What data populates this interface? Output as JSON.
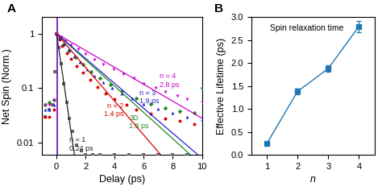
{
  "chart_data": [
    {
      "type": "scatter",
      "panel_label": "A",
      "xlabel": "Delay (ps)",
      "ylabel": "Net Spin (Norm.)",
      "log": "y",
      "xlim": [
        -1,
        10
      ],
      "ylim": [
        0.006,
        2.0
      ],
      "xticks": [
        0,
        2,
        4,
        6,
        8,
        10
      ],
      "yticks": [
        0.01,
        0.1,
        1
      ],
      "series": [
        {
          "color": "#666666",
          "marker": "square",
          "x": [
            -0.8,
            -0.5,
            -0.3,
            -0.1,
            0.0,
            0.15,
            0.3,
            0.5,
            0.7,
            0.9,
            1.1,
            1.4,
            1.7,
            2.0,
            2.5,
            3.0,
            4.0,
            5.0,
            6.0,
            7.0,
            8.0,
            9.0
          ],
          "values": [
            0.03,
            0.04,
            0.05,
            0.2,
            1.0,
            0.55,
            0.28,
            0.12,
            0.055,
            0.028,
            0.016,
            0.009,
            0.007,
            0.006,
            0.006,
            0.006,
            0.006,
            0.006,
            0.006,
            0.006,
            0.006,
            0.006
          ],
          "fit": {
            "tau": 0.24,
            "x_start": 0.0,
            "x_end": 10.0,
            "color": "#222222"
          }
        },
        {
          "color": "#228b22",
          "marker": "diamond",
          "x": [
            -0.8,
            -0.5,
            -0.2,
            0.0,
            0.2,
            0.5,
            0.9,
            1.3,
            1.8,
            2.4,
            3.0,
            3.7,
            4.5,
            5.5,
            6.5,
            7.5,
            8.5,
            9.5,
            10.0
          ],
          "values": [
            0.05,
            0.055,
            0.06,
            1.0,
            0.83,
            0.64,
            0.48,
            0.37,
            0.27,
            0.2,
            0.15,
            0.115,
            0.088,
            0.065,
            0.052,
            0.043,
            0.038,
            0.035,
            0.1
          ],
          "fit": {
            "tau": 1.8,
            "x_start": 0.0,
            "x_end": 10.0,
            "color": "#228b22"
          }
        },
        {
          "color": "#dd0000",
          "marker": "circle",
          "x": [
            -0.8,
            -0.5,
            -0.2,
            0.0,
            0.2,
            0.4,
            0.7,
            1.0,
            1.4,
            1.8,
            2.3,
            2.8,
            3.4,
            4.0,
            4.8,
            5.5,
            6.5,
            7.5,
            8.5,
            9.5
          ],
          "values": [
            0.03,
            0.03,
            0.04,
            1.0,
            0.78,
            0.6,
            0.44,
            0.34,
            0.25,
            0.19,
            0.14,
            0.105,
            0.08,
            0.063,
            0.05,
            0.04,
            0.034,
            0.028,
            0.025,
            0.022
          ],
          "fit": {
            "tau": 1.4,
            "x_start": 0.0,
            "x_end": 10.0,
            "color": "#dd0000"
          }
        },
        {
          "color": "#2222cc",
          "marker": "triangle_up",
          "x": [
            -0.8,
            -0.5,
            -0.2,
            0.0,
            0.2,
            0.5,
            0.8,
            1.2,
            1.6,
            2.1,
            2.6,
            3.2,
            3.8,
            4.5,
            5.2,
            6.0,
            7.0,
            8.0,
            9.0,
            10.0
          ],
          "values": [
            0.04,
            0.04,
            0.05,
            1.0,
            0.82,
            0.63,
            0.5,
            0.38,
            0.3,
            0.22,
            0.17,
            0.13,
            0.1,
            0.08,
            0.065,
            0.052,
            0.042,
            0.035,
            0.03,
            0.027
          ],
          "fit": {
            "tau": 1.9,
            "x_start": 0.0,
            "x_end": 10.0,
            "color": "#2222cc"
          }
        },
        {
          "color": "#cc00cc",
          "marker": "triangle_down",
          "x": [
            -0.8,
            -0.5,
            -0.2,
            0.0,
            0.3,
            0.6,
            1.0,
            1.5,
            2.0,
            2.6,
            3.2,
            3.9,
            4.6,
            5.3,
            6.0,
            6.8,
            7.5,
            8.3,
            9.0,
            10.0
          ],
          "values": [
            0.05,
            0.05,
            0.06,
            1.0,
            0.86,
            0.74,
            0.62,
            0.51,
            0.42,
            0.33,
            0.27,
            0.22,
            0.18,
            0.15,
            0.12,
            0.1,
            0.085,
            0.072,
            0.062,
            0.055
          ],
          "fit": {
            "tau": 2.8,
            "x_start": 0.0,
            "x_end": 10.0,
            "color": "#cc00cc"
          }
        }
      ],
      "vlines": [
        {
          "x": 0.03,
          "color": "#7700bb"
        }
      ],
      "annotations": [
        {
          "text": "n = 1\n0.24 ps",
          "x": 0.9,
          "y": 0.013,
          "color": "#222222"
        },
        {
          "text": "n = 2\n1.4 ps",
          "x": 4.6,
          "y": 0.055,
          "color": "#dd0000"
        },
        {
          "text": "n = 3\n1.9 ps",
          "x": 5.7,
          "y": 0.095,
          "color": "#2222cc"
        },
        {
          "text": "n = 4\n2.8 ps",
          "x": 7.1,
          "y": 0.19,
          "color": "#cc00cc"
        },
        {
          "text": "3D\n1.8 ps",
          "x": 5.0,
          "y": 0.033,
          "color": "#228b22"
        }
      ]
    },
    {
      "type": "line",
      "panel_label": "B",
      "xlabel": "n",
      "ylabel": "Effective Lifetime (ps)",
      "annotation": "Spin relaxation time",
      "xlim": [
        0.5,
        4.5
      ],
      "ylim": [
        0,
        3.0
      ],
      "xticks": [
        1,
        2,
        3,
        4
      ],
      "yticks": [
        0.0,
        0.5,
        1.0,
        1.5,
        2.0,
        2.5,
        3.0
      ],
      "x": [
        1,
        2,
        3,
        4
      ],
      "values": [
        0.24,
        1.38,
        1.88,
        2.8
      ],
      "yerr": [
        0.03,
        0.06,
        0.07,
        0.12
      ],
      "marker": "square"
    }
  ]
}
